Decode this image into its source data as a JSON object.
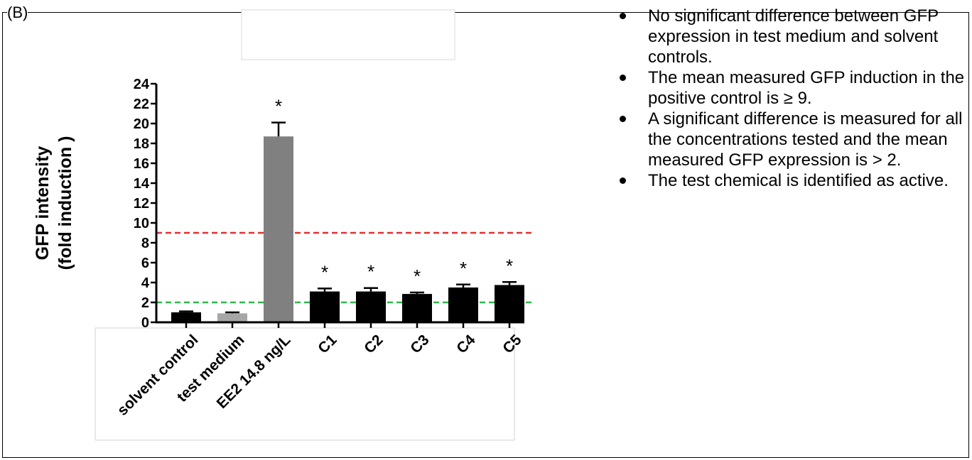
{
  "figure": {
    "panel_letter": "(B)"
  },
  "bullets": [
    "No significant difference between GFP expression in test medium and solvent controls.",
    "The mean measured GFP induction in the positive control is ≥ 9.",
    "A significant difference is measured for all the concentrations tested and the mean measured GFP expression is > 2.",
    "The test chemical is identified as active."
  ],
  "chart_data": {
    "type": "bar",
    "title": "",
    "ylabel_line1": "GFP intensity",
    "ylabel_line2": "(fold induction )",
    "xlabel": "",
    "ylim": [
      0,
      24
    ],
    "yticks": [
      0,
      2,
      4,
      6,
      8,
      10,
      12,
      14,
      16,
      18,
      20,
      22,
      24
    ],
    "categories": [
      "solvent control",
      "test medium",
      "EE2 14.8 ng/L",
      "C1",
      "C2",
      "C3",
      "C4",
      "C5"
    ],
    "values": [
      1.0,
      0.9,
      18.7,
      3.1,
      3.1,
      2.85,
      3.5,
      3.75
    ],
    "errors": [
      0.1,
      0.1,
      1.4,
      0.3,
      0.35,
      0.15,
      0.3,
      0.3
    ],
    "significance": [
      "",
      "",
      "*",
      "*",
      "*",
      "*",
      "*",
      "*"
    ],
    "bar_colors": [
      "#000000",
      "#a6a6a6",
      "#808080",
      "#000000",
      "#000000",
      "#000000",
      "#000000",
      "#000000"
    ],
    "reference_lines": [
      {
        "value": 9,
        "color": "#e03030",
        "style": "dashed"
      },
      {
        "value": 2,
        "color": "#2eb84a",
        "style": "dashed"
      }
    ],
    "grid": false,
    "legend": "none"
  }
}
